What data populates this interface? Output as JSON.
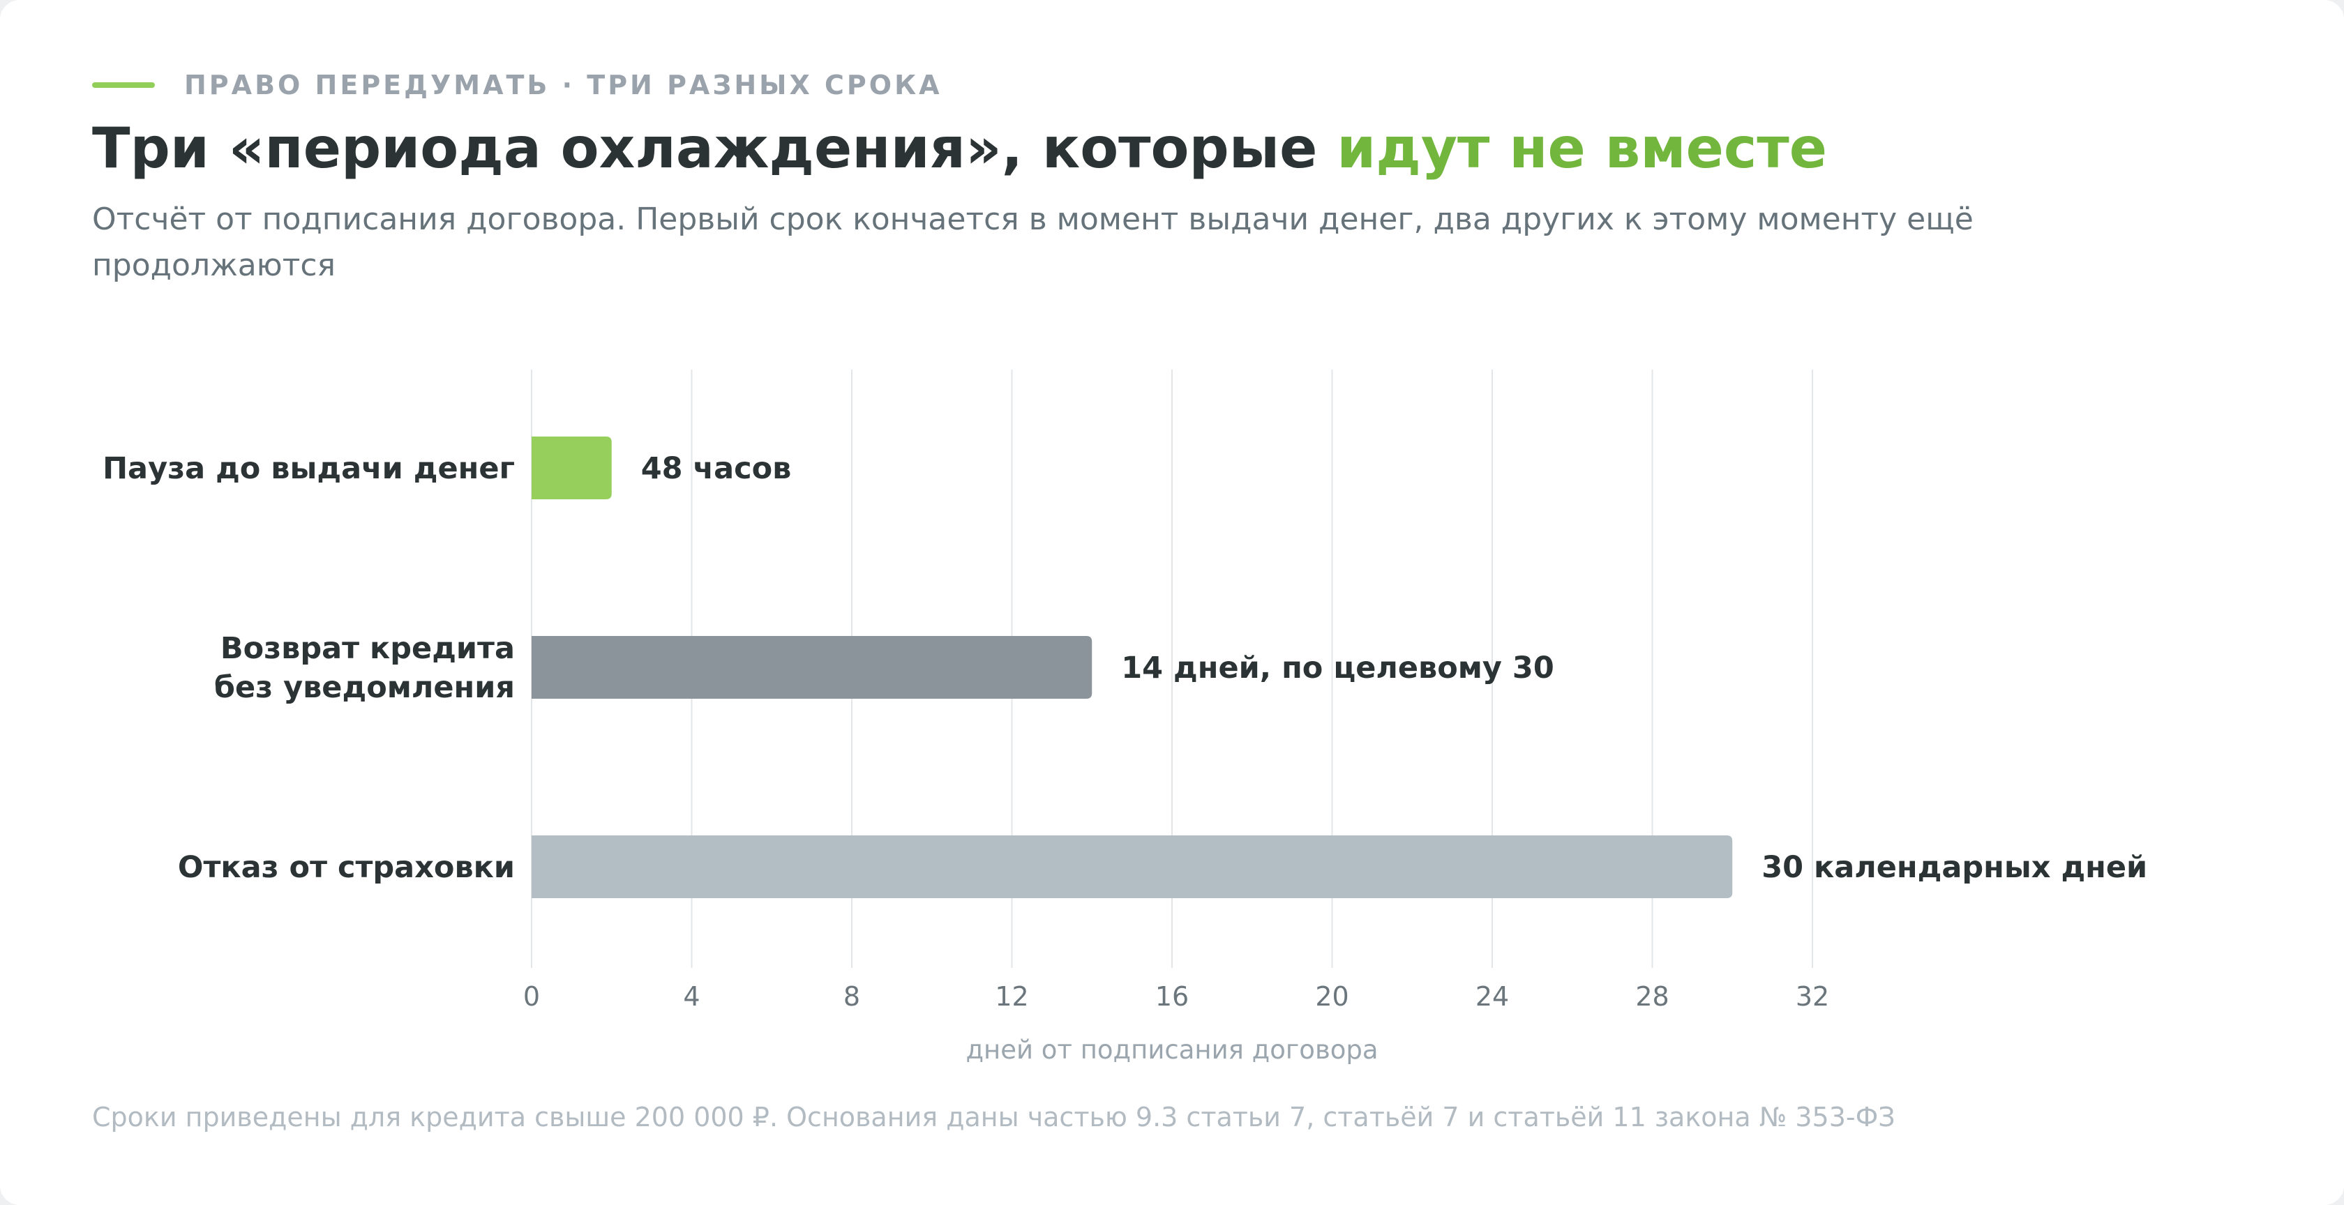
{
  "kicker": {
    "text": "ПРАВО ПЕРЕДУМАТЬ · ТРИ РАЗНЫХ СРОКА",
    "accent_color": "#92cf5a"
  },
  "title": {
    "main": "Три «периода охлаждения», которые ",
    "highlight": "идут не вместе",
    "highlight_color": "#72b63d"
  },
  "subtitle": "Отсчёт от подписания договора. Первый срок кончается в момент выдачи денег, два других к этому моменту ещё продолжаются",
  "chart_data": {
    "type": "bar",
    "orientation": "horizontal",
    "categories": [
      [
        "Пауза до выдачи денег"
      ],
      [
        "Возврат кредита",
        "без уведомления"
      ],
      [
        "Отказ от страховки"
      ]
    ],
    "values": [
      2,
      14,
      30
    ],
    "data_labels": [
      "48 часов",
      "14 дней, по целевому 30",
      "30 календарных дней"
    ],
    "colors": [
      "#96cf5b",
      "#8c949b",
      "#b2bdc4"
    ],
    "xlabel": "дней от подписания договора",
    "xlim": [
      0,
      32
    ],
    "xticks": [
      0,
      4,
      8,
      12,
      16,
      20,
      24,
      28,
      32
    ],
    "grid": true,
    "legend": "none"
  },
  "footnote": "Сроки приведены для кредита свыше 200 000 ₽. Основания даны частью 9.3 статьи 7, статьёй 7 и статьёй 11 закона № 353-ФЗ"
}
